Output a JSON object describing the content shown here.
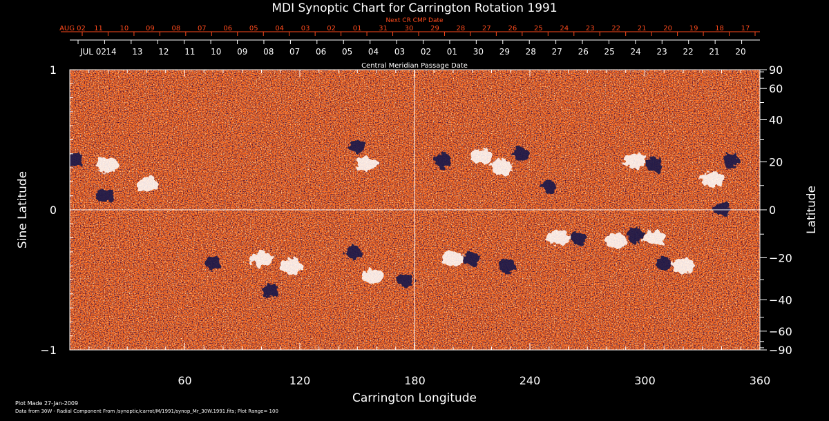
{
  "chart_data": {
    "type": "heatmap",
    "title": "MDI Synoptic Chart for Carrington Rotation 1991",
    "xlabel": "Carrington Longitude",
    "ylabel_left": "Sine Latitude",
    "ylabel_right": "Latitude",
    "xlim": [
      0,
      360
    ],
    "ylim": [
      -1,
      1
    ],
    "x_ticks": [
      60,
      120,
      180,
      240,
      300,
      360
    ],
    "y_ticks_left": [
      {
        "value": 1,
        "label": "1"
      },
      {
        "value": 0,
        "label": "0"
      },
      {
        "value": -1,
        "label": "−1"
      }
    ],
    "latitude_ticks": [
      {
        "deg": 90,
        "label": "90"
      },
      {
        "deg": 60,
        "label": "60"
      },
      {
        "deg": 40,
        "label": "40"
      },
      {
        "deg": 20,
        "label": "20"
      },
      {
        "deg": 0,
        "label": "0"
      },
      {
        "deg": -20,
        "label": "−20"
      },
      {
        "deg": -40,
        "label": "−40"
      },
      {
        "deg": -60,
        "label": "−60"
      },
      {
        "deg": -90,
        "label": "−90"
      }
    ],
    "cmp_axis_label": "Central Meridian Passage Date",
    "cmp_dates": [
      "JUL 02",
      "14",
      "13",
      "12",
      "11",
      "10",
      "09",
      "08",
      "07",
      "06",
      "05",
      "04",
      "03",
      "02",
      "01",
      "30",
      "29",
      "28",
      "27",
      "26",
      "25",
      "24",
      "23",
      "22",
      "21",
      "20"
    ],
    "next_cr_label": "Next CR CMP Date",
    "next_cr_dates": [
      "AUG 02",
      "11",
      "10",
      "09",
      "08",
      "07",
      "06",
      "05",
      "04",
      "03",
      "02",
      "01",
      "31",
      "30",
      "29",
      "28",
      "27",
      "26",
      "25",
      "24",
      "23",
      "22",
      "21",
      "20",
      "19",
      "18",
      "17"
    ],
    "grid": "lines at 180 longitude and 0 latitude",
    "colors": {
      "background": "#ff6a1a",
      "positive_polarity": "#ffffff",
      "negative_polarity": "#1a1a4a",
      "accent_text": "#ff4a1c"
    },
    "positive_regions": [
      {
        "lon": 20,
        "sinlat": 0.32
      },
      {
        "lon": 40,
        "sinlat": 0.18
      },
      {
        "lon": 155,
        "sinlat": 0.33
      },
      {
        "lon": 215,
        "sinlat": 0.38
      },
      {
        "lon": 225,
        "sinlat": 0.3
      },
      {
        "lon": 295,
        "sinlat": 0.35
      },
      {
        "lon": 335,
        "sinlat": 0.22
      },
      {
        "lon": 100,
        "sinlat": -0.35
      },
      {
        "lon": 115,
        "sinlat": -0.4
      },
      {
        "lon": 158,
        "sinlat": -0.48
      },
      {
        "lon": 200,
        "sinlat": -0.35
      },
      {
        "lon": 255,
        "sinlat": -0.2
      },
      {
        "lon": 285,
        "sinlat": -0.22
      },
      {
        "lon": 305,
        "sinlat": -0.2
      },
      {
        "lon": 320,
        "sinlat": -0.4
      }
    ],
    "negative_regions": [
      {
        "lon": 3,
        "sinlat": 0.36
      },
      {
        "lon": 18,
        "sinlat": 0.1
      },
      {
        "lon": 150,
        "sinlat": 0.45
      },
      {
        "lon": 195,
        "sinlat": 0.35
      },
      {
        "lon": 235,
        "sinlat": 0.4
      },
      {
        "lon": 250,
        "sinlat": 0.17
      },
      {
        "lon": 305,
        "sinlat": 0.32
      },
      {
        "lon": 345,
        "sinlat": 0.35
      },
      {
        "lon": 340,
        "sinlat": 0.0
      },
      {
        "lon": 75,
        "sinlat": -0.38
      },
      {
        "lon": 105,
        "sinlat": -0.58
      },
      {
        "lon": 148,
        "sinlat": -0.3
      },
      {
        "lon": 175,
        "sinlat": -0.5
      },
      {
        "lon": 210,
        "sinlat": -0.35
      },
      {
        "lon": 228,
        "sinlat": -0.4
      },
      {
        "lon": 265,
        "sinlat": -0.2
      },
      {
        "lon": 295,
        "sinlat": -0.18
      },
      {
        "lon": 310,
        "sinlat": -0.38
      }
    ]
  },
  "footer": {
    "line1": "Plot Made 27-Jan-2009",
    "line2": "Data from 30W - Radial Component From /synoptic/carrot/M/1991/synop_Mr_30W.1991.fits; Plot Range=  100"
  }
}
